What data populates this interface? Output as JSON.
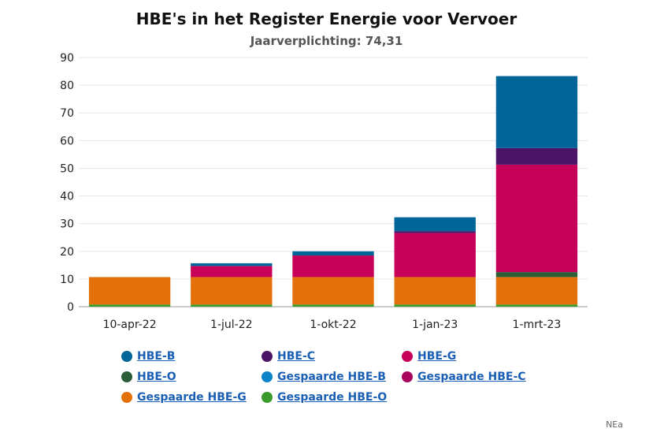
{
  "chart_data": {
    "type": "bar",
    "stacked": true,
    "title": "HBE's in het Register Energie voor Vervoer",
    "subtitle": "Jaarverplichting: 74,31",
    "categories": [
      "10-apr-22",
      "1-jul-22",
      "1-okt-22",
      "1-jan-23",
      "1-mrt-23"
    ],
    "ylim": [
      0,
      90
    ],
    "yticks": [
      0,
      10,
      20,
      30,
      40,
      50,
      60,
      70,
      80,
      90
    ],
    "grid": true,
    "legend_placement": "bottom",
    "series": [
      {
        "name": "Gespaarde HBE-O",
        "color": "#3a9a2a",
        "values": [
          0.8,
          0.8,
          0.8,
          0.8,
          0.8
        ]
      },
      {
        "name": "Gespaarde HBE-G",
        "color": "#e37009",
        "values": [
          9.9,
          9.9,
          9.9,
          9.9,
          9.9
        ]
      },
      {
        "name": "Gespaarde HBE-B",
        "color": "#0a84c8",
        "values": [
          0,
          0,
          0,
          0,
          0
        ]
      },
      {
        "name": "Gespaarde HBE-C",
        "color": "#a8045e",
        "values": [
          0,
          0,
          0,
          0,
          0
        ]
      },
      {
        "name": "HBE-O",
        "color": "#2d5e3a",
        "values": [
          0,
          0,
          0,
          0,
          1.8
        ]
      },
      {
        "name": "HBE-G",
        "color": "#c7005a",
        "values": [
          0,
          4.0,
          7.8,
          15.9,
          38.8
        ]
      },
      {
        "name": "HBE-C",
        "color": "#4b1466",
        "values": [
          0,
          0,
          0,
          0.7,
          6.0
        ]
      },
      {
        "name": "HBE-B",
        "color": "#006699",
        "values": [
          0,
          1.0,
          1.5,
          5.0,
          26.0
        ]
      }
    ]
  },
  "legend": [
    {
      "label": "HBE-B",
      "color": "#006699"
    },
    {
      "label": "HBE-C",
      "color": "#4b1466"
    },
    {
      "label": "HBE-G",
      "color": "#c7005a"
    },
    {
      "label": "HBE-O",
      "color": "#2d5e3a"
    },
    {
      "label": "Gespaarde HBE-B",
      "color": "#0a84c8"
    },
    {
      "label": "Gespaarde HBE-C",
      "color": "#a8045e"
    },
    {
      "label": "Gespaarde HBE-G",
      "color": "#e37009"
    },
    {
      "label": "Gespaarde HBE-O",
      "color": "#3a9a2a"
    }
  ],
  "credit": "NEa"
}
